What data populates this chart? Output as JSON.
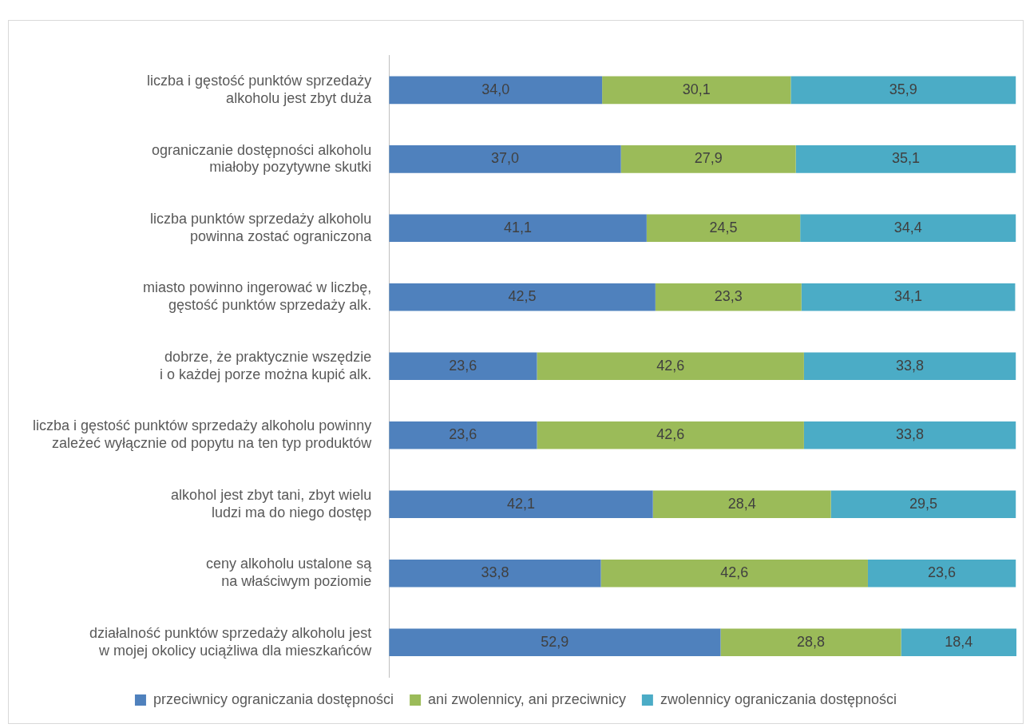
{
  "chart_data": {
    "type": "bar",
    "orientation": "horizontal",
    "stacked": true,
    "legend": "bottom",
    "grid": false,
    "tick_labels": "y",
    "categories": [
      "liczba i gęstość punktów sprzedaży\nalkoholu jest zbyt duża",
      "ograniczanie dostępności alkoholu\nmiałoby pozytywne skutki",
      "liczba punktów sprzedaży alkoholu\npowinna zostać ograniczona",
      "miasto powinno ingerować w liczbę,\ngęstość punktów sprzedaży alk.",
      "dobrze, że praktycznie wszędzie\ni o każdej porze można kupić alk.",
      "liczba i gęstość punktów sprzedaży alkoholu powinny\nzależeć wyłącznie od popytu na ten typ produktów",
      "alkohol jest zbyt tani, zbyt wielu\nludzi ma do niego dostęp",
      "ceny alkoholu ustalone są\nna właściwym poziomie",
      "działalność punktów sprzedaży alkoholu jest\nw mojej okolicy uciążliwa dla mieszkańców"
    ],
    "series": [
      {
        "name": "przeciwnicy ograniczania dostępności",
        "color": "#4f81bd",
        "values": [
          34.0,
          37.0,
          41.1,
          42.5,
          23.6,
          23.6,
          42.1,
          33.8,
          52.9
        ],
        "value_labels": [
          "34,0",
          "37,0",
          "41,1",
          "42,5",
          "23,6",
          "23,6",
          "42,1",
          "33,8",
          "52,9"
        ]
      },
      {
        "name": "ani zwolennicy, ani przeciwnicy",
        "color": "#9bbb59",
        "values": [
          30.1,
          27.9,
          24.5,
          23.3,
          42.6,
          42.6,
          28.4,
          42.6,
          28.8
        ],
        "value_labels": [
          "30,1",
          "27,9",
          "24,5",
          "23,3",
          "42,6",
          "42,6",
          "28,4",
          "42,6",
          "28,8"
        ]
      },
      {
        "name": "zwolennicy ograniczania dostępności",
        "color": "#4bacc6",
        "values": [
          35.9,
          35.1,
          34.4,
          34.1,
          33.8,
          33.8,
          29.5,
          23.6,
          18.4
        ],
        "value_labels": [
          "35,9",
          "35,1",
          "34,4",
          "34,1",
          "33,8",
          "33,8",
          "29,5",
          "23,6",
          "18,4"
        ]
      }
    ]
  }
}
